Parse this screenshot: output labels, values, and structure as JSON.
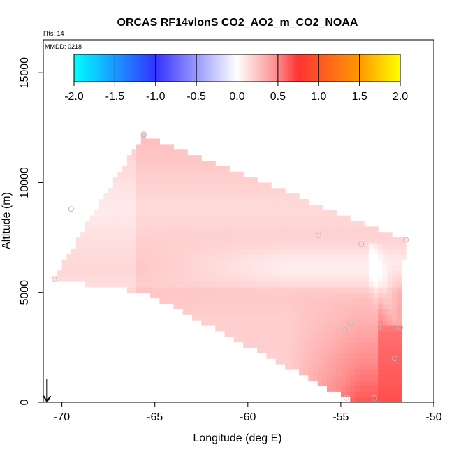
{
  "chart_data": {
    "type": "heatmap",
    "title": "ORCAS RF14vlonS CO2_AO2_m_CO2_NOAA",
    "flights_label": "Flts: 14",
    "date_label": "MMDD: 0218",
    "xlabel": "Longitude (deg E)",
    "ylabel": "Altitude (m)",
    "xlim": [
      -71,
      -50
    ],
    "ylim": [
      0,
      16500
    ],
    "xticks": [
      -70,
      -65,
      -60,
      -55,
      -50
    ],
    "xtick_labels": [
      "-70",
      "-65",
      "-60",
      "-55",
      "-50"
    ],
    "yticks": [
      0,
      5000,
      10000,
      15000
    ],
    "ytick_labels": [
      "0",
      "5000",
      "10000",
      "15000"
    ],
    "colorbar": {
      "range": [
        -2,
        2
      ],
      "ticks": [
        -2,
        -1.5,
        -1,
        -0.5,
        0,
        0.5,
        1,
        1.5,
        2
      ],
      "tick_labels": [
        "-2.0",
        "-1.5",
        "-1.0",
        "-0.5",
        "0.0",
        "0.5",
        "1.0",
        "1.5",
        "2.0"
      ],
      "colors": [
        {
          "v": -2.0,
          "c": "#00ffff"
        },
        {
          "v": -1.0,
          "c": "#3333ff"
        },
        {
          "v": 0.0,
          "c": "#ffffff"
        },
        {
          "v": 0.5,
          "c": "#ff8888"
        },
        {
          "v": 0.75,
          "c": "#ff3333"
        },
        {
          "v": 1.0,
          "c": "#ff5522"
        },
        {
          "v": 1.5,
          "c": "#ff9900"
        },
        {
          "v": 2.0,
          "c": "#ffff00"
        }
      ]
    },
    "field_extent": {
      "region": [
        [
          -70.5,
          5600
        ],
        [
          -65.6,
          12200
        ],
        [
          -51.6,
          7400
        ],
        [
          -51.8,
          100
        ],
        [
          -54.5,
          100
        ],
        [
          -65.5,
          5000
        ]
      ],
      "lon_step": 0.25,
      "alt_step": 250
    },
    "arrow_marker": {
      "lon": -70.8,
      "alt": 600
    },
    "sample_points": [
      {
        "lon": -65.6,
        "alt": 12200
      },
      {
        "lon": -69.5,
        "alt": 8800
      },
      {
        "lon": -70.4,
        "alt": 5600
      },
      {
        "lon": -56.2,
        "alt": 7600
      },
      {
        "lon": -53.9,
        "alt": 7200
      },
      {
        "lon": -51.5,
        "alt": 7400
      },
      {
        "lon": -54.8,
        "alt": 3300
      },
      {
        "lon": -51.8,
        "alt": 3400
      },
      {
        "lon": -53.0,
        "alt": 3400
      },
      {
        "lon": -55.1,
        "alt": 1300
      },
      {
        "lon": -52.1,
        "alt": 2000
      },
      {
        "lon": -54.5,
        "alt": 3600
      },
      {
        "lon": -54.7,
        "alt": 200
      },
      {
        "lon": -53.2,
        "alt": 200
      }
    ]
  }
}
